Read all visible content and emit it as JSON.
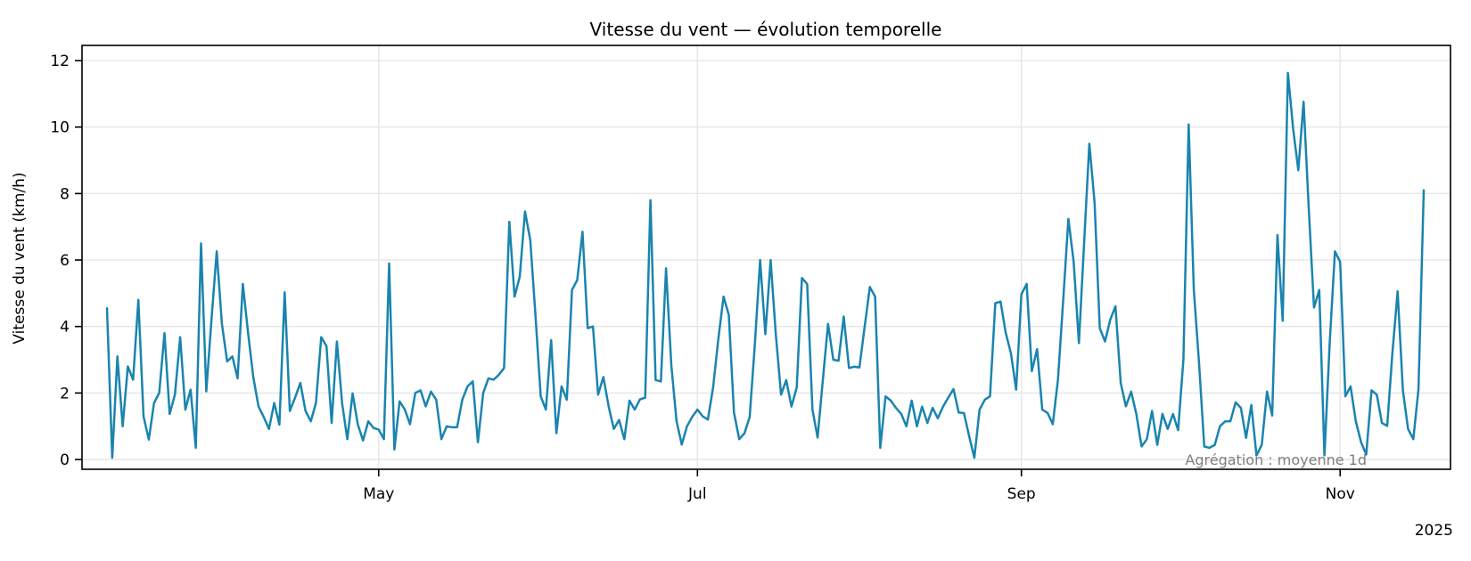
{
  "page": {
    "background": "#ffffff"
  },
  "chart_data": {
    "type": "line",
    "title": "Vitesse du vent — évolution temporelle",
    "ylabel": "Vitesse du vent (km/h)",
    "xlabel": "",
    "year_label": "2025",
    "annotation": "Agrégation : moyenne 1d",
    "line_color": "#1a84af",
    "grid_color": "#e6e6e6",
    "spine_color": "#000000",
    "grid": true,
    "legend": "none",
    "ylim": [
      -0.35,
      12.45
    ],
    "yticks": [
      0,
      2,
      4,
      6,
      8,
      10,
      12
    ],
    "x_start_date": "2025-03-10",
    "x_end_date": "2025-11-17",
    "frequency": "1d",
    "x_ticks": [
      {
        "label": "May",
        "day_offset": 52
      },
      {
        "label": "Jul",
        "day_offset": 113
      },
      {
        "label": "Sep",
        "day_offset": 175
      },
      {
        "label": "Nov",
        "day_offset": 236
      }
    ],
    "values": [
      4.55,
      0.05,
      3.1,
      1.0,
      2.8,
      2.4,
      4.8,
      1.3,
      0.6,
      1.7,
      2.0,
      3.8,
      1.37,
      1.95,
      3.68,
      1.5,
      2.1,
      0.35,
      6.5,
      2.05,
      4.2,
      6.26,
      4.08,
      2.95,
      3.1,
      2.44,
      5.28,
      3.8,
      2.48,
      1.59,
      1.28,
      0.92,
      1.7,
      1.05,
      5.03,
      1.46,
      1.86,
      2.3,
      1.46,
      1.15,
      1.7,
      3.68,
      3.41,
      1.1,
      3.55,
      1.68,
      0.61,
      1.99,
      1.06,
      0.57,
      1.15,
      0.95,
      0.9,
      0.61,
      5.9,
      0.3,
      1.75,
      1.5,
      1.06,
      2.0,
      2.08,
      1.6,
      2.04,
      1.8,
      0.61,
      1.0,
      0.97,
      0.97,
      1.8,
      2.2,
      2.35,
      0.52,
      2.0,
      2.44,
      2.4,
      2.55,
      2.75,
      7.15,
      4.9,
      5.5,
      7.46,
      6.6,
      4.35,
      1.9,
      1.5,
      3.59,
      0.79,
      2.2,
      1.8,
      5.1,
      5.4,
      6.85,
      3.95,
      4.0,
      1.95,
      2.48,
      1.6,
      0.92,
      1.19,
      0.61,
      1.77,
      1.5,
      1.81,
      1.86,
      7.8,
      2.39,
      2.35,
      5.75,
      2.84,
      1.15,
      0.45,
      1.0,
      1.28,
      1.5,
      1.3,
      1.2,
      2.17,
      3.64,
      4.9,
      4.35,
      1.41,
      0.61,
      0.79,
      1.28,
      3.5,
      6.0,
      3.77,
      6.0,
      3.77,
      1.95,
      2.39,
      1.59,
      2.17,
      5.46,
      5.28,
      1.5,
      0.66,
      2.4,
      4.08,
      3.0,
      2.97,
      4.3,
      2.75,
      2.79,
      2.77,
      4.0,
      5.19,
      4.9,
      0.35,
      1.9,
      1.77,
      1.55,
      1.37,
      1.0,
      1.77,
      1.0,
      1.59,
      1.1,
      1.55,
      1.24,
      1.59,
      1.86,
      2.12,
      1.41,
      1.4,
      0.7,
      0.05,
      1.5,
      1.8,
      1.9,
      4.7,
      4.75,
      3.81,
      3.19,
      2.1,
      4.97,
      5.28,
      2.66,
      3.32,
      1.5,
      1.4,
      1.06,
      2.4,
      4.8,
      7.24,
      5.95,
      3.5,
      6.5,
      9.5,
      7.72,
      3.95,
      3.55,
      4.2,
      4.61,
      2.3,
      1.6,
      2.04,
      1.37,
      0.39,
      0.61,
      1.46,
      0.44,
      1.37,
      0.92,
      1.37,
      0.88,
      3.0,
      10.08,
      5.1,
      2.88,
      0.39,
      0.35,
      0.44,
      1.0,
      1.15,
      1.15,
      1.72,
      1.55,
      0.65,
      1.64,
      0.12,
      0.44,
      2.04,
      1.32,
      6.75,
      4.17,
      11.63,
      9.95,
      8.7,
      10.76,
      7.5,
      4.57,
      5.1,
      0.12,
      3.5,
      6.26,
      5.95,
      1.9,
      2.2,
      1.15,
      0.52,
      0.15,
      2.08,
      1.95,
      1.1,
      1.01,
      3.19,
      5.06,
      2.08,
      0.92,
      0.61,
      2.12,
      8.1
    ]
  }
}
